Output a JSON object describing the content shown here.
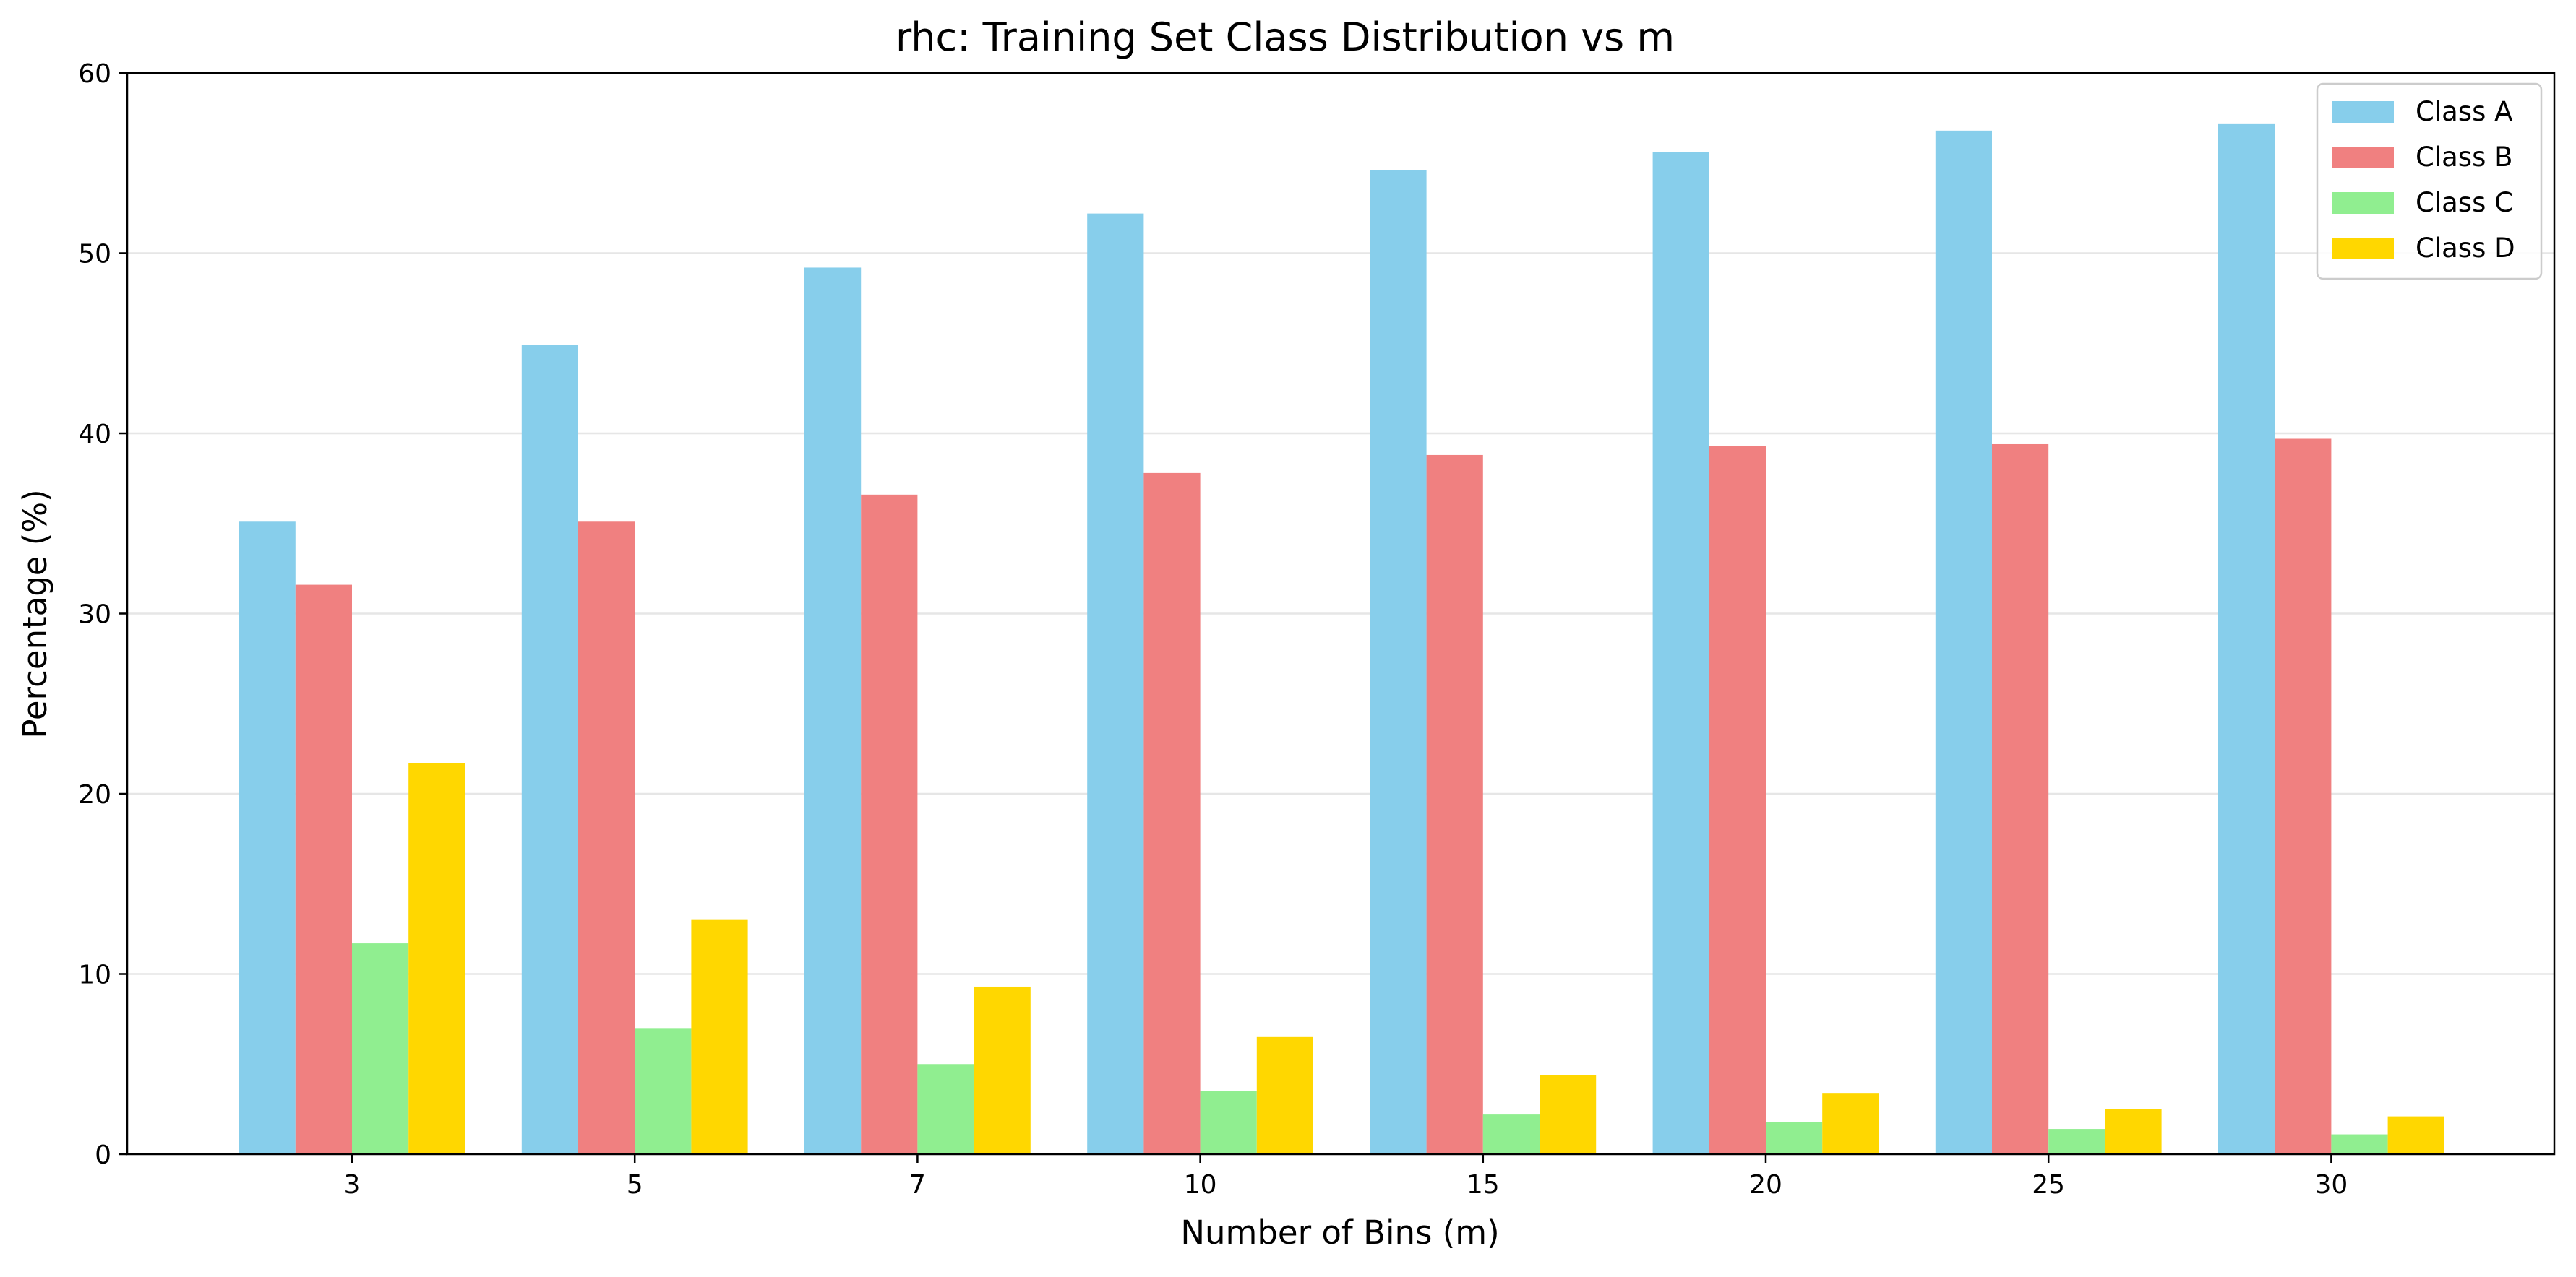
{
  "chart_data": {
    "type": "bar",
    "title": "rhc: Training Set Class Distribution vs m",
    "xlabel": "Number of Bins (m)",
    "ylabel": "Percentage (%)",
    "categories": [
      "3",
      "5",
      "7",
      "10",
      "15",
      "20",
      "25",
      "30"
    ],
    "ylim": [
      0,
      60
    ],
    "yticks": [
      "0",
      "10",
      "20",
      "30",
      "40",
      "50",
      "60"
    ],
    "grid": "y-major",
    "legend_position": "top-right",
    "series": [
      {
        "name": "Class A",
        "color": "#87CEEB",
        "values": [
          35.1,
          44.9,
          49.2,
          52.2,
          54.6,
          55.6,
          56.8,
          57.2
        ]
      },
      {
        "name": "Class B",
        "color": "#F08080",
        "values": [
          31.6,
          35.1,
          36.6,
          37.8,
          38.8,
          39.3,
          39.4,
          39.7
        ]
      },
      {
        "name": "Class C",
        "color": "#90EE90",
        "values": [
          11.7,
          7.0,
          5.0,
          3.5,
          2.2,
          1.8,
          1.4,
          1.1
        ]
      },
      {
        "name": "Class D",
        "color": "#FFD700",
        "values": [
          21.7,
          13.0,
          9.3,
          6.5,
          4.4,
          3.4,
          2.5,
          2.1
        ]
      }
    ]
  }
}
